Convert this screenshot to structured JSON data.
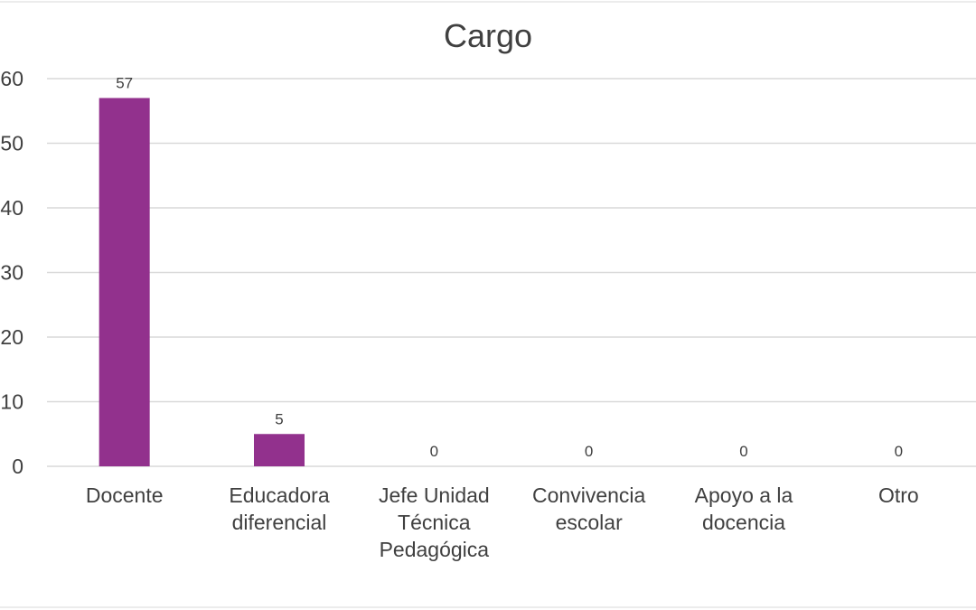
{
  "chart_data": {
    "type": "bar",
    "title": "Cargo",
    "xlabel": "",
    "ylabel": "",
    "categories": [
      [
        "Docente"
      ],
      [
        "Educadora",
        "diferencial"
      ],
      [
        "Jefe Unidad",
        "Técnica",
        "Pedagógica"
      ],
      [
        "Convivencia",
        "escolar"
      ],
      [
        "Apoyo a la",
        "docencia"
      ],
      [
        "Otro"
      ]
    ],
    "values": [
      57,
      5,
      0,
      0,
      0,
      0
    ],
    "data_labels": [
      "57",
      "5",
      "0",
      "0",
      "0",
      "0"
    ],
    "ylim": [
      0,
      60
    ],
    "yticks": [
      0,
      10,
      20,
      30,
      40,
      50,
      60
    ],
    "grid": true,
    "legend": "none",
    "colors": {
      "bar": "#92318D",
      "grid": "#D9D9D9",
      "text": "#404040"
    }
  }
}
